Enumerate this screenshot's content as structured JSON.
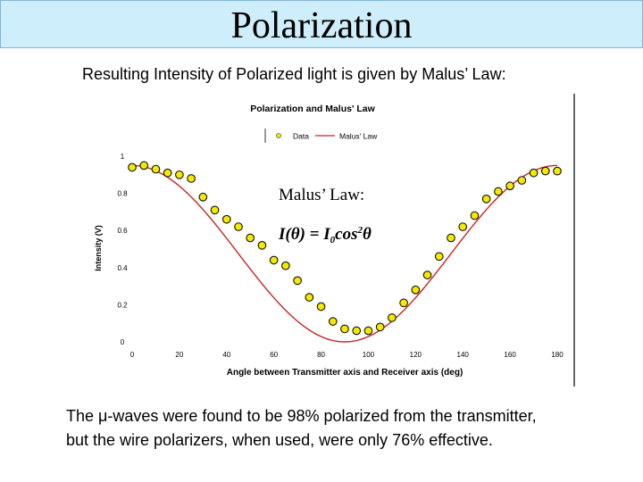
{
  "slide": {
    "title": "Polarization",
    "subtitle": "Resulting Intensity of Polarized light is given by Malus’ Law:",
    "bottom_text_line1": "The μ-waves were found to be 98% polarized from the transmitter,",
    "bottom_text_line2": "but the wire polarizers, when used, were only 76% effective."
  },
  "chart_data": {
    "type": "scatter",
    "title": "Polarization and Malus' Law",
    "xlabel": "Angle between Transmitter axis and Receiver axis (deg)",
    "ylabel": "Intensity (V)",
    "xlim": [
      0,
      180
    ],
    "ylim": [
      0,
      1
    ],
    "x_ticks": [
      "0",
      "20",
      "40",
      "60",
      "80",
      "100",
      "120",
      "140",
      "160",
      "180"
    ],
    "y_ticks": [
      "0",
      "0.2",
      "0.4",
      "0.6",
      "0.8",
      "1"
    ],
    "legend": {
      "position": "top",
      "items": [
        "Data",
        "Malus' Law"
      ]
    },
    "grid": false,
    "annotation_line1": "Malus’ Law:",
    "annotation_line2": {
      "lhs": "I(θ) = I",
      "sub": "0",
      "func": "cos",
      "sup": "2",
      "var": "θ"
    },
    "series": [
      {
        "name": "Data",
        "type": "scatter",
        "color": "#f2ea00",
        "x": [
          0,
          5,
          10,
          15,
          20,
          25,
          30,
          35,
          40,
          45,
          50,
          55,
          60,
          65,
          70,
          75,
          80,
          85,
          90,
          95,
          100,
          105,
          110,
          115,
          120,
          125,
          130,
          135,
          140,
          145,
          150,
          155,
          160,
          165,
          170,
          175,
          180
        ],
        "y": [
          0.94,
          0.95,
          0.93,
          0.91,
          0.9,
          0.88,
          0.78,
          0.71,
          0.66,
          0.62,
          0.56,
          0.52,
          0.44,
          0.41,
          0.33,
          0.24,
          0.19,
          0.11,
          0.07,
          0.06,
          0.06,
          0.08,
          0.13,
          0.21,
          0.28,
          0.36,
          0.46,
          0.56,
          0.62,
          0.68,
          0.77,
          0.81,
          0.84,
          0.87,
          0.91,
          0.92,
          0.92
        ]
      },
      {
        "name": "Malus' Law",
        "type": "line",
        "color": "#cc2222",
        "amplitude": 0.95
      }
    ]
  }
}
